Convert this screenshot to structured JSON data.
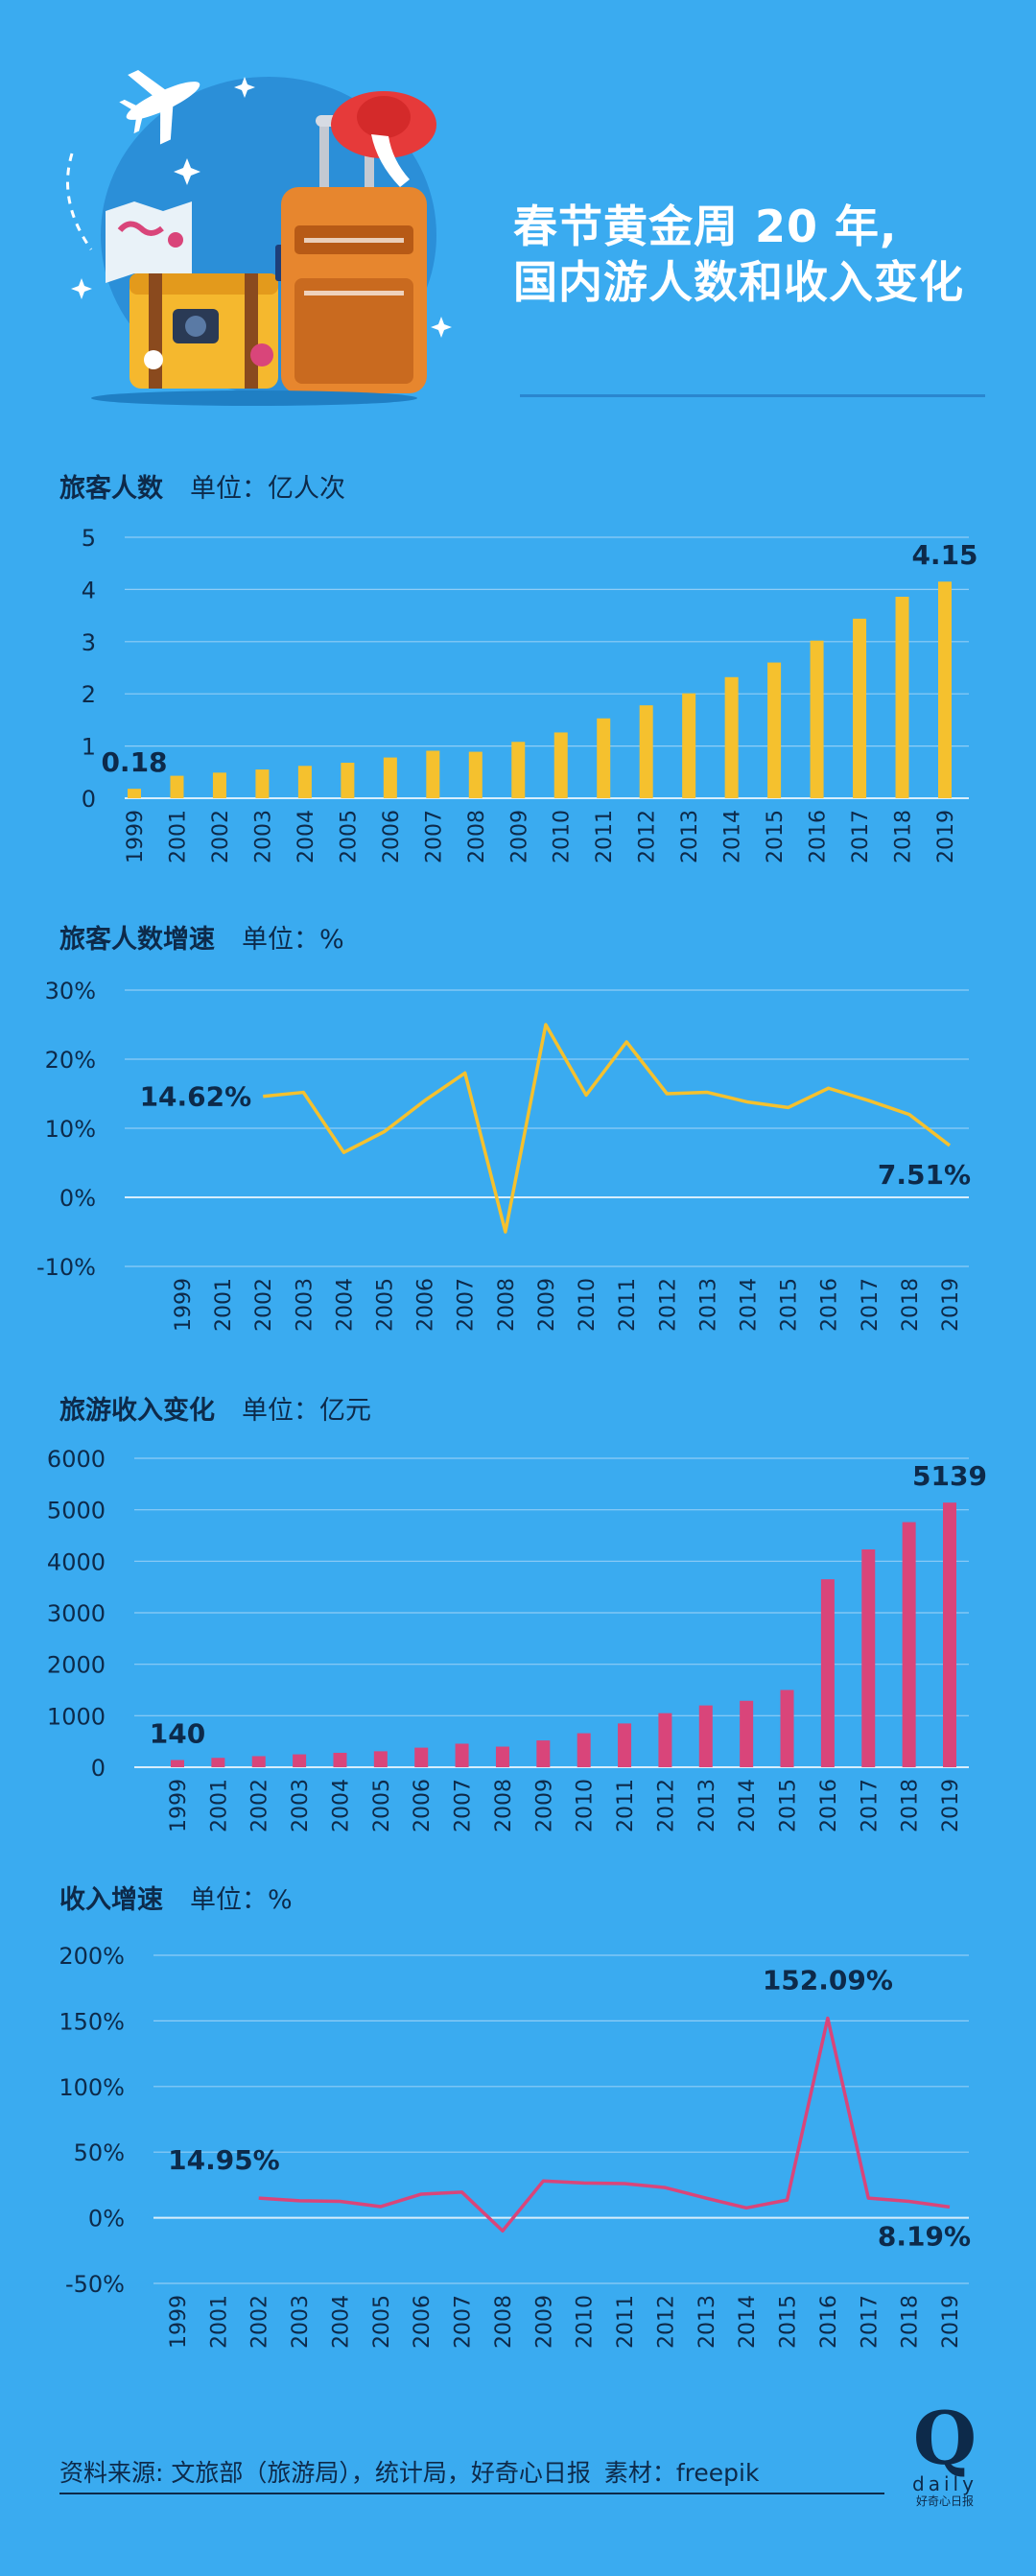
{
  "header": {
    "title_line1": "春节黄金周 20 年,",
    "title_line2": "国内游人数和收入变化"
  },
  "colors": {
    "background": "#3aabf0",
    "bar_yellow": "#f5c12e",
    "bar_pink": "#d9457a",
    "text_dark": "#0d2a4a",
    "grid": "#9ad4f8"
  },
  "chart_data": [
    {
      "type": "bar",
      "title": "旅客人数",
      "unit": "单位：亿人次",
      "categories": [
        "1999",
        "2001",
        "2002",
        "2003",
        "2004",
        "2005",
        "2006",
        "2007",
        "2008",
        "2009",
        "2010",
        "2011",
        "2012",
        "2013",
        "2014",
        "2015",
        "2016",
        "2017",
        "2018",
        "2019"
      ],
      "values": [
        0.18,
        0.43,
        0.49,
        0.55,
        0.62,
        0.68,
        0.78,
        0.91,
        0.89,
        1.08,
        1.26,
        1.53,
        1.78,
        2.01,
        2.32,
        2.6,
        3.02,
        3.44,
        3.86,
        4.15
      ],
      "ylim": [
        0,
        5
      ],
      "yticks": [
        "0",
        "1",
        "2",
        "3",
        "4",
        "5"
      ],
      "annotations": [
        {
          "index": 0,
          "text": "0.18"
        },
        {
          "index": 19,
          "text": "4.15"
        }
      ],
      "grid": true
    },
    {
      "type": "line",
      "title": "旅客人数增速",
      "unit": "单位：%",
      "categories": [
        "1999",
        "2001",
        "2002",
        "2003",
        "2004",
        "2005",
        "2006",
        "2007",
        "2008",
        "2009",
        "2010",
        "2011",
        "2012",
        "2013",
        "2014",
        "2015",
        "2016",
        "2017",
        "2018",
        "2019"
      ],
      "values": [
        null,
        null,
        14.62,
        15.2,
        6.5,
        9.5,
        14.0,
        18.0,
        -5.0,
        25.0,
        14.8,
        22.5,
        15.0,
        15.2,
        13.8,
        13.0,
        15.8,
        14.0,
        12.0,
        7.51
      ],
      "ylim": [
        -10,
        30
      ],
      "yticks": [
        "-10%",
        "0%",
        "10%",
        "20%",
        "30%"
      ],
      "annotations": [
        {
          "index": 2,
          "text": "14.62%"
        },
        {
          "index": 19,
          "text": "7.51%"
        }
      ],
      "grid": true
    },
    {
      "type": "bar",
      "title": "旅游收入变化",
      "unit": "单位：亿元",
      "categories": [
        "1999",
        "2001",
        "2002",
        "2003",
        "2004",
        "2005",
        "2006",
        "2007",
        "2008",
        "2009",
        "2010",
        "2011",
        "2012",
        "2013",
        "2014",
        "2015",
        "2016",
        "2017",
        "2018",
        "2019"
      ],
      "values": [
        140,
        182,
        215,
        250,
        280,
        310,
        380,
        457,
        400,
        520,
        660,
        850,
        1050,
        1200,
        1290,
        1500,
        3650,
        4230,
        4760,
        5139
      ],
      "ylim": [
        0,
        6000
      ],
      "yticks": [
        "0",
        "1000",
        "2000",
        "3000",
        "4000",
        "5000",
        "6000"
      ],
      "annotations": [
        {
          "index": 0,
          "text": "140"
        },
        {
          "index": 19,
          "text": "5139"
        }
      ],
      "grid": true
    },
    {
      "type": "line",
      "title": "收入增速",
      "unit": "单位：%",
      "categories": [
        "1999",
        "2001",
        "2002",
        "2003",
        "2004",
        "2005",
        "2006",
        "2007",
        "2008",
        "2009",
        "2010",
        "2011",
        "2012",
        "2013",
        "2014",
        "2015",
        "2016",
        "2017",
        "2018",
        "2019"
      ],
      "values": [
        null,
        null,
        14.95,
        13.0,
        12.5,
        8.5,
        18.0,
        19.5,
        -10.0,
        28.0,
        26.5,
        26.0,
        23.0,
        15.0,
        7.5,
        13.5,
        152.09,
        15.0,
        12.5,
        8.19
      ],
      "ylim": [
        -50,
        200
      ],
      "yticks": [
        "-50%",
        "0%",
        "50%",
        "100%",
        "150%",
        "200%"
      ],
      "annotations": [
        {
          "index": 2,
          "text": "14.95%"
        },
        {
          "index": 16,
          "text": "152.09%"
        },
        {
          "index": 19,
          "text": "8.19%"
        }
      ],
      "grid": true
    }
  ],
  "footer": {
    "source": "资料来源: 文旅部（旅游局），统计局，好奇心日报",
    "material": "素材：freepik",
    "logo_letter": "Q",
    "logo_word": "daily",
    "logo_cn": "好奇心日报"
  }
}
